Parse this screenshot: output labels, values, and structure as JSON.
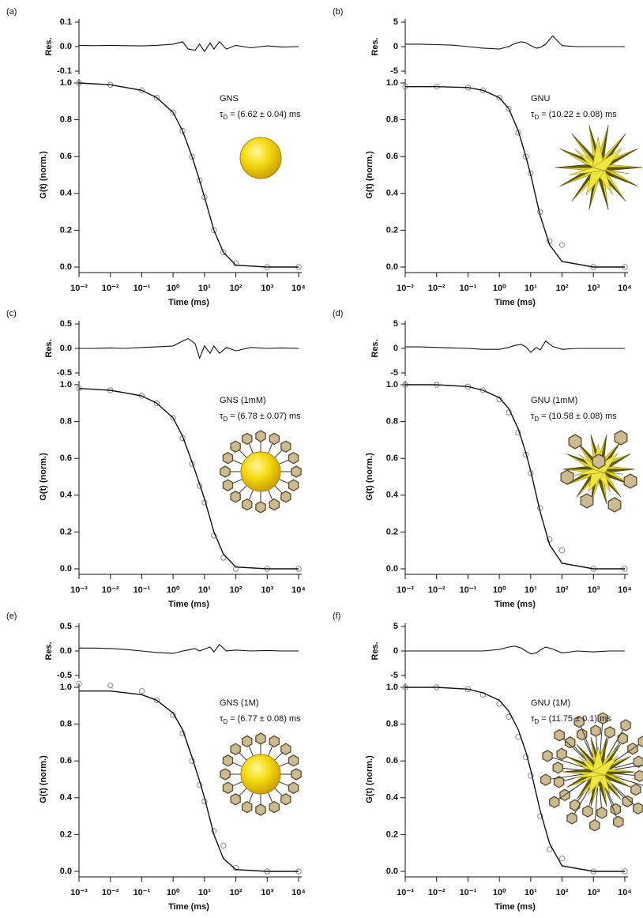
{
  "chart_data": [
    {
      "type": "line",
      "panel_label": "(a)",
      "xlabel": "Time (ms)",
      "ylabel": "G(t) (norm.)",
      "log_x": true,
      "annotation": {
        "name": "GNS",
        "tau_symbol": "τ",
        "tau_subscript": "D",
        "tau_value": "= (6.62 ± 0.04) ms"
      },
      "xlim": [
        0.001,
        10000
      ],
      "xticks": [
        {
          "value": 0.001,
          "label": "10⁻³"
        },
        {
          "value": 0.01,
          "label": "10⁻²"
        },
        {
          "value": 0.1,
          "label": "10⁻¹"
        },
        {
          "value": 1,
          "label": "10⁰"
        },
        {
          "value": 10,
          "label": "10¹"
        },
        {
          "value": 100,
          "label": "10²"
        },
        {
          "value": 1000,
          "label": "10³"
        },
        {
          "value": 10000,
          "label": "10⁴"
        }
      ],
      "ylim": [
        0,
        1
      ],
      "yticks": [
        {
          "value": 0,
          "label": "0.0"
        },
        0.2,
        0.4,
        0.6,
        0.8,
        {
          "value": 1,
          "label": "1.0"
        }
      ],
      "x": [
        0.001,
        0.01,
        0.1,
        0.3,
        1,
        2,
        4,
        7,
        10,
        20,
        40,
        100,
        1000,
        10000
      ],
      "series": [
        {
          "style": "markers",
          "color": "#8a8a8a",
          "values": [
            1.0,
            0.99,
            0.96,
            0.92,
            0.84,
            0.74,
            0.6,
            0.47,
            0.38,
            0.2,
            0.08,
            0.02,
            0.0,
            0.0
          ]
        },
        {
          "style": "line",
          "color": "#111111",
          "values": [
            1.0,
            0.99,
            0.96,
            0.92,
            0.84,
            0.74,
            0.6,
            0.47,
            0.38,
            0.2,
            0.08,
            0.01,
            0.0,
            0.0
          ]
        }
      ],
      "residual": {
        "ylabel": "Res.",
        "ylim": [
          -0.1,
          0.1
        ],
        "yticks": [
          -0.1,
          {
            "value": 0,
            "label": "0.0"
          },
          0.1
        ],
        "x": [
          0.001,
          0.003,
          0.01,
          0.03,
          0.1,
          0.3,
          1,
          2,
          3,
          5,
          7,
          10,
          15,
          20,
          30,
          50,
          100,
          300,
          1000,
          3000,
          10000
        ],
        "values": [
          0.005,
          0.004,
          0.005,
          0.004,
          0.003,
          0.005,
          0.01,
          0.02,
          -0.01,
          -0.015,
          0.01,
          -0.02,
          0.015,
          -0.01,
          0.02,
          -0.01,
          0.005,
          -0.005,
          0.003,
          -0.002,
          0.0
        ]
      }
    },
    {
      "type": "line",
      "panel_label": "(b)",
      "xlabel": "Time (ms)",
      "ylabel": "G(t) (norm.)",
      "log_x": true,
      "annotation": {
        "name": "GNU",
        "tau_symbol": "τ",
        "tau_subscript": "D",
        "tau_value": "= (10.22 ± 0.08) ms"
      },
      "xlim": [
        0.001,
        10000
      ],
      "xticks": [
        {
          "value": 0.001,
          "label": "10⁻³"
        },
        {
          "value": 0.01,
          "label": "10⁻²"
        },
        {
          "value": 0.1,
          "label": "10⁻¹"
        },
        {
          "value": 1,
          "label": "10⁰"
        },
        {
          "value": 10,
          "label": "10¹"
        },
        {
          "value": 100,
          "label": "10²"
        },
        {
          "value": 1000,
          "label": "10³"
        },
        {
          "value": 10000,
          "label": "10⁴"
        }
      ],
      "ylim": [
        0,
        1
      ],
      "yticks": [
        {
          "value": 0,
          "label": "0.0"
        },
        0.2,
        0.4,
        0.6,
        0.8,
        {
          "value": 1,
          "label": "1.0"
        }
      ],
      "x": [
        0.001,
        0.01,
        0.1,
        0.3,
        1,
        2,
        4,
        7,
        10,
        20,
        40,
        100,
        1000,
        10000
      ],
      "series": [
        {
          "style": "markers",
          "color": "#8a8a8a",
          "values": [
            0.98,
            0.98,
            0.975,
            0.96,
            0.92,
            0.86,
            0.73,
            0.6,
            0.51,
            0.3,
            0.14,
            0.12,
            0.0,
            0.0
          ]
        },
        {
          "style": "line",
          "color": "#111111",
          "values": [
            0.98,
            0.98,
            0.975,
            0.96,
            0.92,
            0.86,
            0.74,
            0.6,
            0.5,
            0.28,
            0.12,
            0.03,
            0.0,
            0.0
          ]
        }
      ],
      "residual": {
        "ylabel": "Res.",
        "ylim": [
          -5,
          5
        ],
        "yticks": [
          -5,
          0,
          5
        ],
        "x": [
          0.001,
          0.003,
          0.01,
          0.03,
          0.1,
          0.3,
          1,
          2,
          3,
          5,
          7,
          10,
          15,
          20,
          30,
          50,
          100,
          300,
          1000,
          3000,
          10000
        ],
        "values": [
          0.5,
          0.5,
          0.4,
          0.3,
          0.0,
          -0.3,
          -0.5,
          0.0,
          0.6,
          1.0,
          0.8,
          0.2,
          -0.3,
          -0.2,
          0.5,
          2.2,
          0.2,
          0.0,
          0.0,
          0.0,
          0.0
        ]
      }
    },
    {
      "type": "line",
      "panel_label": "(c)",
      "xlabel": "Time (ms)",
      "ylabel": "G(t) (norm.)",
      "log_x": true,
      "annotation": {
        "name": "GNS (1mM)",
        "tau_symbol": "τ",
        "tau_subscript": "D",
        "tau_value": "= (6.78 ± 0.07) ms"
      },
      "xlim": [
        0.001,
        10000
      ],
      "xticks": [
        {
          "value": 0.001,
          "label": "10⁻³"
        },
        {
          "value": 0.01,
          "label": "10⁻²"
        },
        {
          "value": 0.1,
          "label": "10⁻¹"
        },
        {
          "value": 1,
          "label": "10⁰"
        },
        {
          "value": 10,
          "label": "10¹"
        },
        {
          "value": 100,
          "label": "10²"
        },
        {
          "value": 1000,
          "label": "10³"
        },
        {
          "value": 10000,
          "label": "10⁴"
        }
      ],
      "ylim": [
        0,
        1
      ],
      "yticks": [
        {
          "value": 0,
          "label": "0.0"
        },
        0.2,
        0.4,
        0.6,
        0.8,
        {
          "value": 1,
          "label": "1.0"
        }
      ],
      "x": [
        0.001,
        0.01,
        0.1,
        0.3,
        1,
        2,
        4,
        7,
        10,
        20,
        40,
        100,
        1000,
        10000
      ],
      "series": [
        {
          "style": "markers",
          "color": "#8a8a8a",
          "values": [
            0.98,
            0.97,
            0.94,
            0.9,
            0.82,
            0.71,
            0.57,
            0.45,
            0.36,
            0.18,
            0.06,
            0.0,
            0.0,
            0.0
          ]
        },
        {
          "style": "line",
          "color": "#111111",
          "values": [
            0.98,
            0.97,
            0.94,
            0.9,
            0.82,
            0.72,
            0.58,
            0.46,
            0.38,
            0.2,
            0.08,
            0.01,
            0.0,
            0.0
          ]
        }
      ],
      "residual": {
        "ylabel": "Res.",
        "ylim": [
          -0.5,
          0.5
        ],
        "yticks": [
          -0.5,
          {
            "value": 0,
            "label": "0.0"
          },
          0.5
        ],
        "x": [
          0.001,
          0.003,
          0.01,
          0.03,
          0.1,
          0.3,
          1,
          2,
          3,
          5,
          7,
          10,
          15,
          20,
          30,
          50,
          100,
          300,
          1000,
          3000,
          10000
        ],
        "values": [
          0.0,
          0.0,
          0.01,
          0.0,
          0.02,
          0.03,
          0.05,
          0.15,
          0.2,
          0.1,
          -0.2,
          0.05,
          -0.1,
          0.05,
          -0.1,
          0.02,
          -0.05,
          0.02,
          0.0,
          0.01,
          0.0
        ]
      }
    },
    {
      "type": "line",
      "panel_label": "(d)",
      "xlabel": "Time (ms)",
      "ylabel": "G(t) (norm.)",
      "log_x": true,
      "annotation": {
        "name": "GNU (1mM)",
        "tau_symbol": "τ",
        "tau_subscript": "D",
        "tau_value": "= (10.58 ± 0.08) ms"
      },
      "xlim": [
        0.001,
        10000
      ],
      "xticks": [
        {
          "value": 0.001,
          "label": "10⁻³"
        },
        {
          "value": 0.01,
          "label": "10⁻²"
        },
        {
          "value": 0.1,
          "label": "10⁻¹"
        },
        {
          "value": 1,
          "label": "10⁰"
        },
        {
          "value": 10,
          "label": "10¹"
        },
        {
          "value": 100,
          "label": "10²"
        },
        {
          "value": 1000,
          "label": "10³"
        },
        {
          "value": 10000,
          "label": "10⁴"
        }
      ],
      "ylim": [
        0,
        1
      ],
      "yticks": [
        {
          "value": 0,
          "label": "0.0"
        },
        0.2,
        0.4,
        0.6,
        0.8,
        {
          "value": 1,
          "label": "1.0"
        }
      ],
      "x": [
        0.001,
        0.01,
        0.1,
        0.3,
        1,
        2,
        4,
        7,
        10,
        20,
        40,
        100,
        1000,
        10000
      ],
      "series": [
        {
          "style": "markers",
          "color": "#8a8a8a",
          "values": [
            1.0,
            1.0,
            0.99,
            0.97,
            0.92,
            0.85,
            0.74,
            0.62,
            0.52,
            0.33,
            0.16,
            0.1,
            0.0,
            0.0
          ]
        },
        {
          "style": "line",
          "color": "#111111",
          "values": [
            1.0,
            1.0,
            0.99,
            0.97,
            0.93,
            0.87,
            0.76,
            0.63,
            0.53,
            0.31,
            0.13,
            0.03,
            0.0,
            0.0
          ]
        }
      ],
      "residual": {
        "ylabel": "Res.",
        "ylim": [
          -5,
          5
        ],
        "yticks": [
          -5,
          0,
          5
        ],
        "x": [
          0.001,
          0.003,
          0.01,
          0.03,
          0.1,
          0.3,
          1,
          2,
          3,
          5,
          7,
          10,
          15,
          20,
          30,
          50,
          100,
          300,
          1000,
          3000,
          10000
        ],
        "values": [
          0.3,
          0.3,
          0.2,
          0.1,
          0.0,
          -0.2,
          -0.2,
          0.2,
          0.6,
          0.8,
          0.3,
          -0.8,
          0.2,
          -0.3,
          1.5,
          0.4,
          -0.2,
          0.0,
          0.0,
          0.0,
          0.0
        ]
      }
    },
    {
      "type": "line",
      "panel_label": "(e)",
      "xlabel": "Time (ms)",
      "ylabel": "G(t) (norm.)",
      "log_x": true,
      "annotation": {
        "name": "GNS (1M)",
        "tau_symbol": "τ",
        "tau_subscript": "D",
        "tau_value": "= (6.77 ± 0.08) ms"
      },
      "xlim": [
        0.001,
        10000
      ],
      "xticks": [
        {
          "value": 0.001,
          "label": "10⁻³"
        },
        {
          "value": 0.01,
          "label": "10⁻²"
        },
        {
          "value": 0.1,
          "label": "10⁻¹"
        },
        {
          "value": 1,
          "label": "10⁰"
        },
        {
          "value": 10,
          "label": "10¹"
        },
        {
          "value": 100,
          "label": "10²"
        },
        {
          "value": 1000,
          "label": "10³"
        },
        {
          "value": 10000,
          "label": "10⁴"
        }
      ],
      "ylim": [
        0,
        1
      ],
      "yticks": [
        {
          "value": 0,
          "label": "0.0"
        },
        0.2,
        0.4,
        0.6,
        0.8,
        {
          "value": 1,
          "label": "1.0"
        }
      ],
      "x": [
        0.001,
        0.01,
        0.1,
        0.3,
        1,
        2,
        4,
        7,
        10,
        20,
        40,
        100,
        1000,
        10000
      ],
      "series": [
        {
          "style": "markers",
          "color": "#8a8a8a",
          "values": [
            1.02,
            1.01,
            0.98,
            0.93,
            0.85,
            0.75,
            0.6,
            0.47,
            0.38,
            0.22,
            0.14,
            0.02,
            0.0,
            0.0
          ]
        },
        {
          "style": "line",
          "color": "#111111",
          "values": [
            0.98,
            0.98,
            0.96,
            0.93,
            0.86,
            0.77,
            0.62,
            0.49,
            0.4,
            0.2,
            0.07,
            0.01,
            0.0,
            0.0
          ]
        }
      ],
      "residual": {
        "ylabel": "Res.",
        "ylim": [
          -0.5,
          0.5
        ],
        "yticks": [
          -0.5,
          {
            "value": 0,
            "label": "0.0"
          },
          0.5
        ],
        "x": [
          0.001,
          0.003,
          0.01,
          0.03,
          0.1,
          0.3,
          1,
          2,
          3,
          5,
          7,
          10,
          15,
          20,
          30,
          50,
          100,
          300,
          1000,
          3000,
          10000
        ],
        "values": [
          0.06,
          0.06,
          0.05,
          0.03,
          0.0,
          -0.03,
          -0.05,
          0.0,
          0.02,
          0.05,
          0.0,
          0.04,
          0.08,
          -0.02,
          0.13,
          0.0,
          0.02,
          0.0,
          0.01,
          0.0,
          0.0
        ]
      }
    },
    {
      "type": "line",
      "panel_label": "(f)",
      "xlabel": "Time (ms)",
      "ylabel": "G(t) (norm.)",
      "log_x": true,
      "annotation": {
        "name": "GNU (1M)",
        "tau_symbol": "τ",
        "tau_subscript": "D",
        "tau_value": "= (11.75 ± 0.1) ms"
      },
      "xlim": [
        0.001,
        10000
      ],
      "xticks": [
        {
          "value": 0.001,
          "label": "10⁻³"
        },
        {
          "value": 0.01,
          "label": "10⁻²"
        },
        {
          "value": 0.1,
          "label": "10⁻¹"
        },
        {
          "value": 1,
          "label": "10⁰"
        },
        {
          "value": 10,
          "label": "10¹"
        },
        {
          "value": 100,
          "label": "10²"
        },
        {
          "value": 1000,
          "label": "10³"
        },
        {
          "value": 10000,
          "label": "10⁴"
        }
      ],
      "ylim": [
        0,
        1
      ],
      "yticks": [
        {
          "value": 0,
          "label": "0.0"
        },
        0.2,
        0.4,
        0.6,
        0.8,
        {
          "value": 1,
          "label": "1.0"
        }
      ],
      "x": [
        0.001,
        0.01,
        0.1,
        0.3,
        1,
        2,
        4,
        7,
        10,
        20,
        40,
        100,
        1000,
        10000
      ],
      "series": [
        {
          "style": "markers",
          "color": "#8a8a8a",
          "values": [
            1.0,
            1.0,
            0.99,
            0.96,
            0.91,
            0.84,
            0.73,
            0.62,
            0.52,
            0.3,
            0.12,
            0.07,
            0.0,
            0.0
          ]
        },
        {
          "style": "line",
          "color": "#111111",
          "values": [
            1.0,
            1.0,
            0.99,
            0.97,
            0.93,
            0.87,
            0.77,
            0.65,
            0.55,
            0.33,
            0.15,
            0.03,
            0.0,
            0.0
          ]
        }
      ],
      "residual": {
        "ylabel": "Res.",
        "ylim": [
          -5,
          5
        ],
        "yticks": [
          -5,
          0,
          5
        ],
        "x": [
          0.001,
          0.003,
          0.01,
          0.03,
          0.1,
          0.3,
          1,
          2,
          3,
          5,
          7,
          10,
          15,
          20,
          30,
          50,
          100,
          300,
          1000,
          3000,
          10000
        ],
        "values": [
          0.0,
          0.0,
          0.0,
          0.0,
          0.0,
          0.0,
          0.3,
          0.8,
          1.0,
          0.6,
          0.0,
          -0.6,
          -0.4,
          0.2,
          0.8,
          0.4,
          -0.4,
          0.0,
          -0.2,
          0.0,
          0.0
        ]
      }
    }
  ]
}
